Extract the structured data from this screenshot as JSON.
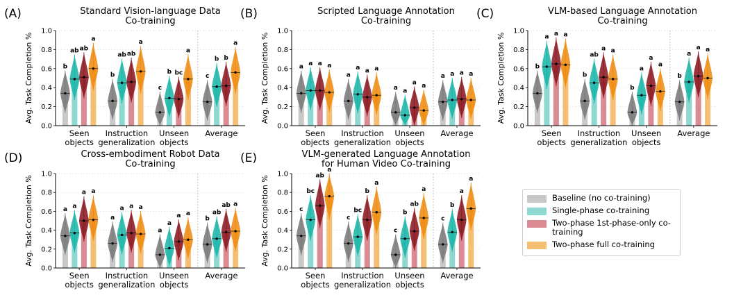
{
  "legend": {
    "items": [
      {
        "label": "Baseline (no co-training)",
        "color": "#c8c8c8"
      },
      {
        "label": "Single-phase co-training",
        "color": "#8fd8d2"
      },
      {
        "label": "Two-phase 1st-phase-only co-training",
        "color": "#d98a92"
      },
      {
        "label": "Two-phase full co-training",
        "color": "#f5bf73"
      }
    ]
  },
  "chart_data": [
    {
      "panel": "(A)",
      "type": "violin",
      "title_line1": "Standard Vision-language Data",
      "title_line2": "Co-training",
      "ylabel": "Avg. Task Completion %",
      "ylim": [
        0,
        1.0
      ],
      "yticks": [
        "0.0",
        "0.2",
        "0.4",
        "0.6",
        "0.8",
        "1.0"
      ],
      "categories": [
        {
          "line1": "Seen",
          "line2": "objects"
        },
        {
          "line1": "Instruction",
          "line2": "generalization"
        },
        {
          "line1": "Unseen",
          "line2": "objects"
        },
        {
          "line1": "Average",
          "line2": ""
        }
      ],
      "series": [
        {
          "name": "Baseline (no co-training)",
          "means": [
            0.34,
            0.26,
            0.14,
            0.25
          ],
          "sig": [
            "b",
            "b",
            "c",
            "c"
          ]
        },
        {
          "name": "Single-phase co-training",
          "means": [
            0.49,
            0.45,
            0.29,
            0.41
          ],
          "sig": [
            "ab",
            "ab",
            "b",
            "b"
          ]
        },
        {
          "name": "Two-phase 1st-phase-only co-training",
          "means": [
            0.51,
            0.46,
            0.28,
            0.42
          ],
          "sig": [
            "ab",
            "ab",
            "bc",
            "b"
          ]
        },
        {
          "name": "Two-phase full co-training",
          "means": [
            0.6,
            0.57,
            0.49,
            0.56
          ],
          "sig": [
            "a",
            "a",
            "a",
            "a"
          ]
        }
      ]
    },
    {
      "panel": "(B)",
      "type": "violin",
      "title_line1": "Scripted Language Annotation",
      "title_line2": "Co-training",
      "ylabel": "Avg. Task Completion %",
      "ylim": [
        0,
        1.0
      ],
      "yticks": [
        "0.0",
        "0.2",
        "0.4",
        "0.6",
        "0.8",
        "1.0"
      ],
      "categories": [
        {
          "line1": "Seen",
          "line2": "objects"
        },
        {
          "line1": "Instruction",
          "line2": "generalization"
        },
        {
          "line1": "Unseen",
          "line2": "objects"
        },
        {
          "line1": "Average",
          "line2": ""
        }
      ],
      "series": [
        {
          "name": "Baseline (no co-training)",
          "means": [
            0.34,
            0.26,
            0.14,
            0.25
          ],
          "sig": [
            "a",
            "a",
            "a",
            "a"
          ]
        },
        {
          "name": "Single-phase co-training",
          "means": [
            0.37,
            0.33,
            0.11,
            0.27
          ],
          "sig": [
            "a",
            "a",
            "a",
            "a"
          ]
        },
        {
          "name": "Two-phase 1st-phase-only co-training",
          "means": [
            0.37,
            0.3,
            0.19,
            0.28
          ],
          "sig": [
            "a",
            "a",
            "a",
            "a"
          ]
        },
        {
          "name": "Two-phase full co-training",
          "means": [
            0.35,
            0.32,
            0.16,
            0.27
          ],
          "sig": [
            "a",
            "a",
            "a",
            "a"
          ]
        }
      ]
    },
    {
      "panel": "(C)",
      "type": "violin",
      "title_line1": "VLM-based Language Annotation",
      "title_line2": "Co-training",
      "ylabel": "Avg. Task Completion %",
      "ylim": [
        0,
        1.0
      ],
      "yticks": [
        "0.0",
        "0.2",
        "0.4",
        "0.6",
        "0.8",
        "1.0"
      ],
      "categories": [
        {
          "line1": "Seen",
          "line2": "objects"
        },
        {
          "line1": "Instruction",
          "line2": "generalization"
        },
        {
          "line1": "Unseen",
          "line2": "objects"
        },
        {
          "line1": "Average",
          "line2": ""
        }
      ],
      "series": [
        {
          "name": "Baseline (no co-training)",
          "means": [
            0.34,
            0.26,
            0.14,
            0.25
          ],
          "sig": [
            "b",
            "b",
            "b",
            "b"
          ]
        },
        {
          "name": "Single-phase co-training",
          "means": [
            0.62,
            0.45,
            0.32,
            0.46
          ],
          "sig": [
            "a",
            "ab",
            "a",
            "a"
          ]
        },
        {
          "name": "Two-phase 1st-phase-only co-training",
          "means": [
            0.65,
            0.51,
            0.42,
            0.52
          ],
          "sig": [
            "a",
            "a",
            "a",
            "a"
          ]
        },
        {
          "name": "Two-phase full co-training",
          "means": [
            0.64,
            0.49,
            0.36,
            0.5
          ],
          "sig": [
            "a",
            "a",
            "a",
            "a"
          ]
        }
      ]
    },
    {
      "panel": "(D)",
      "type": "violin",
      "title_line1": "Cross-embodiment Robot Data",
      "title_line2": "Co-training",
      "ylabel": "Avg. Task Completion %",
      "ylim": [
        0,
        1.0
      ],
      "yticks": [
        "0.0",
        "0.2",
        "0.4",
        "0.6",
        "0.8",
        "1.0"
      ],
      "categories": [
        {
          "line1": "Seen",
          "line2": "objects"
        },
        {
          "line1": "Instruction",
          "line2": "generalization"
        },
        {
          "line1": "Unseen",
          "line2": "objects"
        },
        {
          "line1": "Average",
          "line2": ""
        }
      ],
      "series": [
        {
          "name": "Baseline (no co-training)",
          "means": [
            0.34,
            0.26,
            0.14,
            0.25
          ],
          "sig": [
            "a",
            "a",
            "a",
            "b"
          ]
        },
        {
          "name": "Single-phase co-training",
          "means": [
            0.37,
            0.35,
            0.21,
            0.31
          ],
          "sig": [
            "a",
            "a",
            "a",
            "ab"
          ]
        },
        {
          "name": "Two-phase 1st-phase-only co-training",
          "means": [
            0.5,
            0.37,
            0.28,
            0.38
          ],
          "sig": [
            "a",
            "a",
            "a",
            "ab"
          ]
        },
        {
          "name": "Two-phase full co-training",
          "means": [
            0.51,
            0.36,
            0.3,
            0.39
          ],
          "sig": [
            "a",
            "a",
            "a",
            "a"
          ]
        }
      ]
    },
    {
      "panel": "(E)",
      "type": "violin",
      "title_line1": "VLM-generated Language Annotation",
      "title_line2": "for Human Video Co-training",
      "ylabel": "Avg. Task Completion %",
      "ylim": [
        0,
        1.0
      ],
      "yticks": [
        "0.0",
        "0.2",
        "0.4",
        "0.6",
        "0.8",
        "1.0"
      ],
      "categories": [
        {
          "line1": "Seen",
          "line2": "objects"
        },
        {
          "line1": "Instruction",
          "line2": "generalization"
        },
        {
          "line1": "Unseen",
          "line2": "objects"
        },
        {
          "line1": "Average",
          "line2": ""
        }
      ],
      "series": [
        {
          "name": "Baseline (no co-training)",
          "means": [
            0.34,
            0.26,
            0.14,
            0.25
          ],
          "sig": [
            "c",
            "c",
            "c",
            "c"
          ]
        },
        {
          "name": "Single-phase co-training",
          "means": [
            0.51,
            0.33,
            0.31,
            0.38
          ],
          "sig": [
            "bc",
            "bc",
            "b",
            "b"
          ]
        },
        {
          "name": "Two-phase 1st-phase-only co-training",
          "means": [
            0.66,
            0.51,
            0.39,
            0.51
          ],
          "sig": [
            "ab",
            "b",
            "ab",
            "a"
          ]
        },
        {
          "name": "Two-phase full co-training",
          "means": [
            0.76,
            0.59,
            0.53,
            0.63
          ],
          "sig": [
            "a",
            "a",
            "a",
            "a"
          ]
        }
      ]
    }
  ]
}
